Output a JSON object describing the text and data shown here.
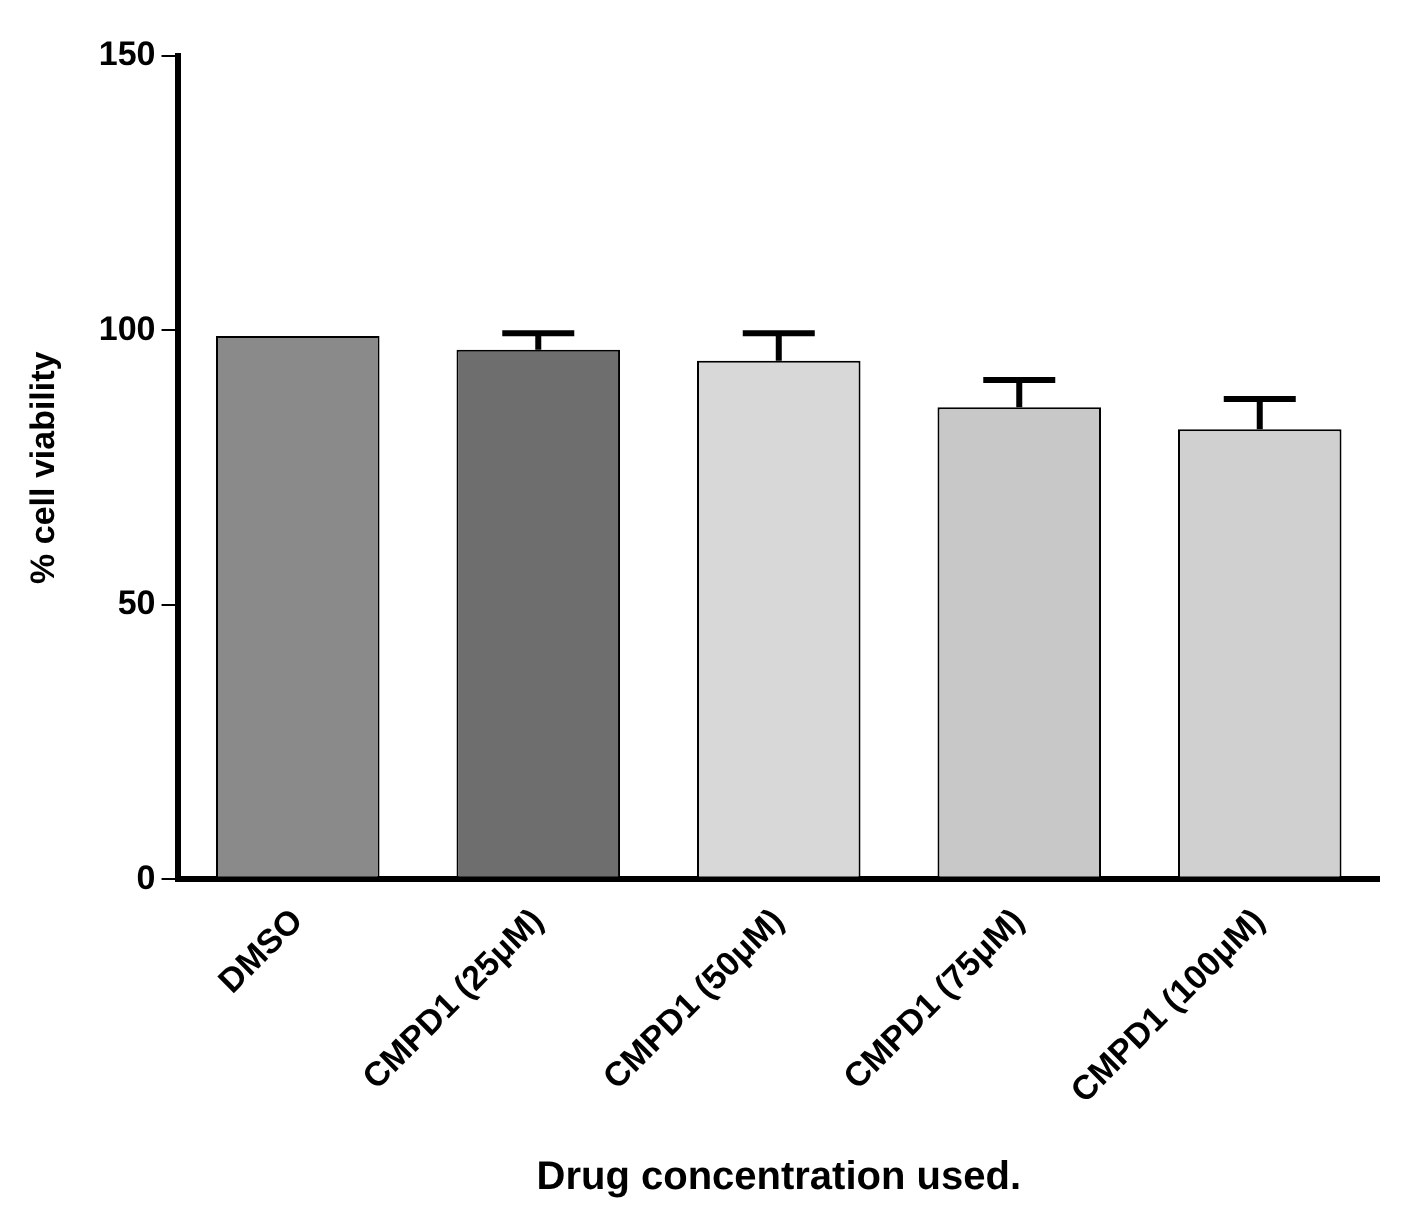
{
  "chart_data": {
    "type": "bar",
    "xlabel": "Drug concentration used.",
    "ylabel": "% cell viability",
    "categories": [
      "DMSO",
      "CMPD1 (25μM)",
      "CMPD1 (50μM)",
      "CMPD1 (75μM)",
      "CMPD1 (100μM)"
    ],
    "values": [
      99,
      96.5,
      94.5,
      86,
      82
    ],
    "errors": [
      null,
      3,
      5,
      5,
      5.5
    ],
    "colors": [
      "#8a8a8a",
      "#6e6e6e",
      "#d8d8d8",
      "#c8c8c8",
      "#d0d0d0"
    ],
    "ylim": [
      0,
      150
    ],
    "yticks": [
      0,
      50,
      100,
      150
    ],
    "grid": false,
    "legend": false
  }
}
